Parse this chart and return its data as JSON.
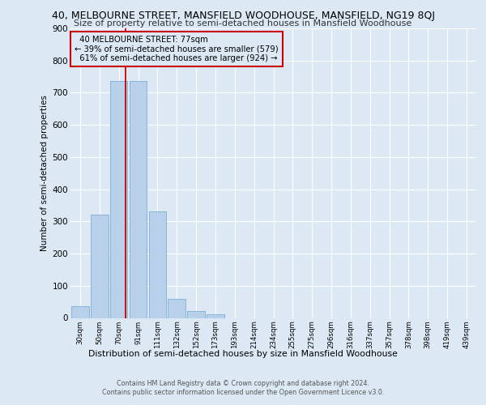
{
  "title1": "40, MELBOURNE STREET, MANSFIELD WOODHOUSE, MANSFIELD, NG19 8QJ",
  "title2": "Size of property relative to semi-detached houses in Mansfield Woodhouse",
  "xlabel": "Distribution of semi-detached houses by size in Mansfield Woodhouse",
  "ylabel": "Number of semi-detached properties",
  "footer1": "Contains HM Land Registry data © Crown copyright and database right 2024.",
  "footer2": "Contains public sector information licensed under the Open Government Licence v3.0.",
  "categories": [
    "30sqm",
    "50sqm",
    "70sqm",
    "91sqm",
    "111sqm",
    "132sqm",
    "152sqm",
    "173sqm",
    "193sqm",
    "214sqm",
    "234sqm",
    "255sqm",
    "275sqm",
    "296sqm",
    "316sqm",
    "337sqm",
    "357sqm",
    "378sqm",
    "398sqm",
    "419sqm",
    "439sqm"
  ],
  "values": [
    37,
    320,
    737,
    737,
    330,
    58,
    22,
    12,
    0,
    0,
    0,
    0,
    0,
    0,
    0,
    0,
    0,
    0,
    0,
    0,
    0
  ],
  "bar_color": "#b8d0ea",
  "bar_edge_color": "#7aafd4",
  "property_line_color": "#cc0000",
  "property_line_x": 2.35,
  "pct_smaller": 39,
  "count_smaller": 579,
  "pct_larger": 61,
  "count_larger": 924,
  "annotation_label": "40 MELBOURNE STREET: 77sqm",
  "ylim": [
    0,
    900
  ],
  "yticks": [
    0,
    100,
    200,
    300,
    400,
    500,
    600,
    700,
    800,
    900
  ],
  "background_color": "#dce9f5",
  "plot_bg_color": "#dce9f5",
  "grid_color": "#ffffff",
  "annotation_box_edge_color": "#cc0000"
}
